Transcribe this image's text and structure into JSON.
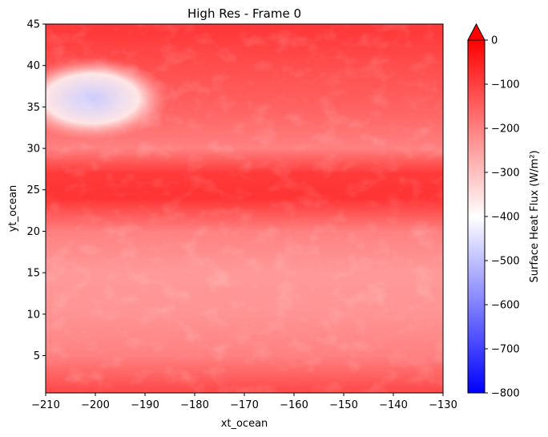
{
  "chart_data": {
    "type": "heatmap",
    "title": "High Res - Frame 0",
    "xlabel": "xt_ocean",
    "ylabel": "yt_ocean",
    "xlim": [
      -210,
      -130
    ],
    "ylim": [
      0.5,
      45
    ],
    "xticks": [
      -210,
      -200,
      -190,
      -180,
      -170,
      -160,
      -150,
      -140,
      -130
    ],
    "yticks": [
      5,
      10,
      15,
      20,
      25,
      30,
      35,
      40,
      45
    ],
    "colorbar": {
      "label": "Surface Heat Flux (W/m²)",
      "colormap": "bwr",
      "range": [
        -800,
        0
      ],
      "ticks": [
        0,
        -100,
        -200,
        -300,
        -400,
        -500,
        -600,
        -700,
        -800
      ],
      "extend": "max"
    },
    "field_summary": {
      "bands": [
        {
          "lat": 44,
          "value": -90
        },
        {
          "lat": 40,
          "value": -120
        },
        {
          "lat": 35,
          "value": -150
        },
        {
          "lat": 30,
          "value": -200
        },
        {
          "lat": 27,
          "value": -90
        },
        {
          "lat": 24,
          "value": -80
        },
        {
          "lat": 20,
          "value": -200
        },
        {
          "lat": 15,
          "value": -240
        },
        {
          "lat": 10,
          "value": -230
        },
        {
          "lat": 5,
          "value": -200
        },
        {
          "lat": 1,
          "value": -120
        }
      ],
      "cold_patch": {
        "lon_range": [
          -210,
          -185
        ],
        "lat_range": [
          31,
          41
        ],
        "value": -480
      }
    }
  }
}
